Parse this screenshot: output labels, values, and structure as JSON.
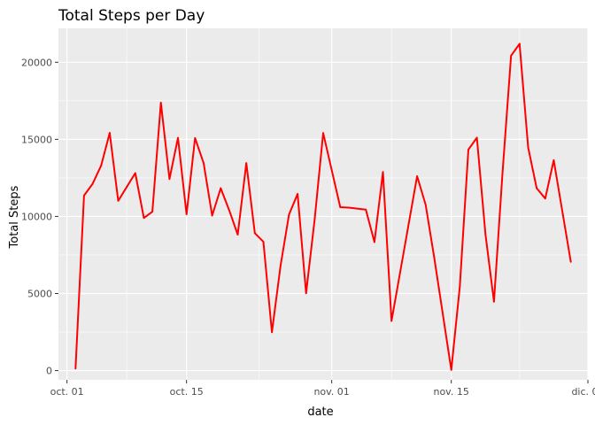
{
  "chart_data": {
    "type": "line",
    "title": "Total Steps per Day",
    "xlabel": "date",
    "ylabel": "Total Steps",
    "x_tick_labels": [
      {
        "date": "2012-10-01",
        "label": "oct. 01"
      },
      {
        "date": "2012-10-15",
        "label": "oct. 15"
      },
      {
        "date": "2012-11-01",
        "label": "nov. 01"
      },
      {
        "date": "2012-11-15",
        "label": "nov. 15"
      },
      {
        "date": "2012-12-01",
        "label": "dic. 01"
      }
    ],
    "y_ticks": [
      0,
      5000,
      10000,
      15000,
      20000
    ],
    "y_tick_labels": [
      "0",
      "5000",
      "10000",
      "15000",
      "20000"
    ],
    "xlim": [
      "2012-09-30",
      "2012-12-01"
    ],
    "ylim": [
      -600,
      22200
    ],
    "grid": true,
    "line_color": "#ff0000",
    "panel_color": "#ebebeb",
    "series": [
      {
        "x": [
          "2012-10-02",
          "2012-10-03",
          "2012-10-04",
          "2012-10-05",
          "2012-10-06",
          "2012-10-07",
          "2012-10-09",
          "2012-10-10",
          "2012-10-11",
          "2012-10-12",
          "2012-10-13",
          "2012-10-14",
          "2012-10-15",
          "2012-10-16",
          "2012-10-17",
          "2012-10-18",
          "2012-10-19",
          "2012-10-20",
          "2012-10-21",
          "2012-10-22",
          "2012-10-23",
          "2012-10-24",
          "2012-10-25",
          "2012-10-26",
          "2012-10-27",
          "2012-10-28",
          "2012-10-29",
          "2012-10-30",
          "2012-10-31",
          "2012-11-02",
          "2012-11-03",
          "2012-11-05",
          "2012-11-06",
          "2012-11-07",
          "2012-11-08",
          "2012-11-11",
          "2012-11-12",
          "2012-11-13",
          "2012-11-15",
          "2012-11-16",
          "2012-11-17",
          "2012-11-18",
          "2012-11-19",
          "2012-11-20",
          "2012-11-21",
          "2012-11-22",
          "2012-11-23",
          "2012-11-24",
          "2012-11-25",
          "2012-11-26",
          "2012-11-27",
          "2012-11-29"
        ],
        "y": [
          126,
          11352,
          12116,
          13294,
          15420,
          11015,
          12811,
          9900,
          10304,
          17382,
          12426,
          15098,
          10139,
          15084,
          13452,
          10056,
          11829,
          10395,
          8821,
          13460,
          8918,
          8355,
          2492,
          6778,
          10119,
          11458,
          5018,
          9819,
          15414,
          10600,
          10571,
          10439,
          8334,
          12883,
          3219,
          12608,
          10765,
          7336,
          41,
          5441,
          14339,
          15110,
          8841,
          4472,
          12787,
          20427,
          21194,
          14478,
          11834,
          11162,
          13646,
          7047
        ]
      }
    ]
  }
}
